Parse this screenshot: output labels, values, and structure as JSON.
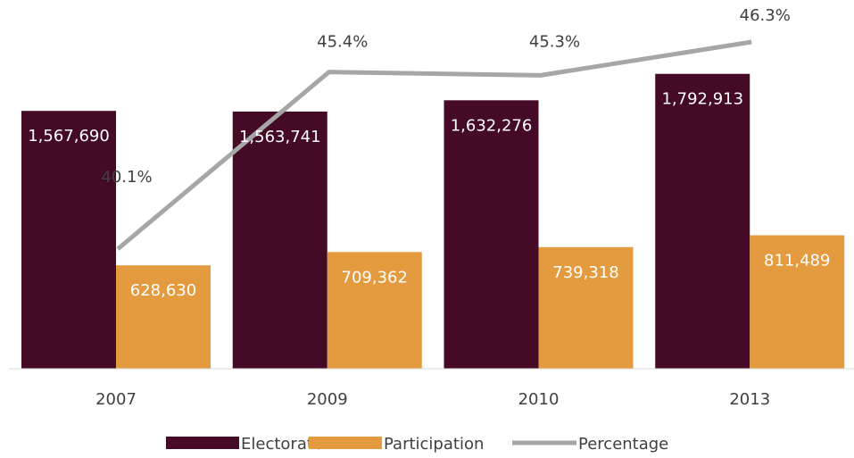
{
  "chart_data": {
    "type": "bar",
    "categories": [
      "2007",
      "2009",
      "2010",
      "2013"
    ],
    "series": [
      {
        "name": "Electorate",
        "kind": "bar",
        "color": "#440a26",
        "values": [
          1567690,
          1563741,
          1632276,
          1792913
        ],
        "labels": [
          "1,567,690",
          "1,563,741",
          "1,632,276",
          "1,792,913"
        ]
      },
      {
        "name": "Participation",
        "kind": "bar",
        "color": "#e49b3f",
        "values": [
          628630,
          709362,
          739318,
          811489
        ],
        "labels": [
          "628,630",
          "709,362",
          "739,318",
          "811,489"
        ]
      },
      {
        "name": "Percentage",
        "kind": "line",
        "color": "#a6a6a6",
        "values": [
          40.1,
          45.4,
          45.3,
          46.3
        ],
        "labels": [
          "40.1%",
          "45.4%",
          "45.3%",
          "46.3%"
        ]
      }
    ],
    "title": "",
    "xlabel": "",
    "ylabel": "",
    "ylim": [
      0,
      1900000
    ],
    "y2lim": [
      30,
      48
    ],
    "grid": false,
    "legend_position": "bottom"
  }
}
